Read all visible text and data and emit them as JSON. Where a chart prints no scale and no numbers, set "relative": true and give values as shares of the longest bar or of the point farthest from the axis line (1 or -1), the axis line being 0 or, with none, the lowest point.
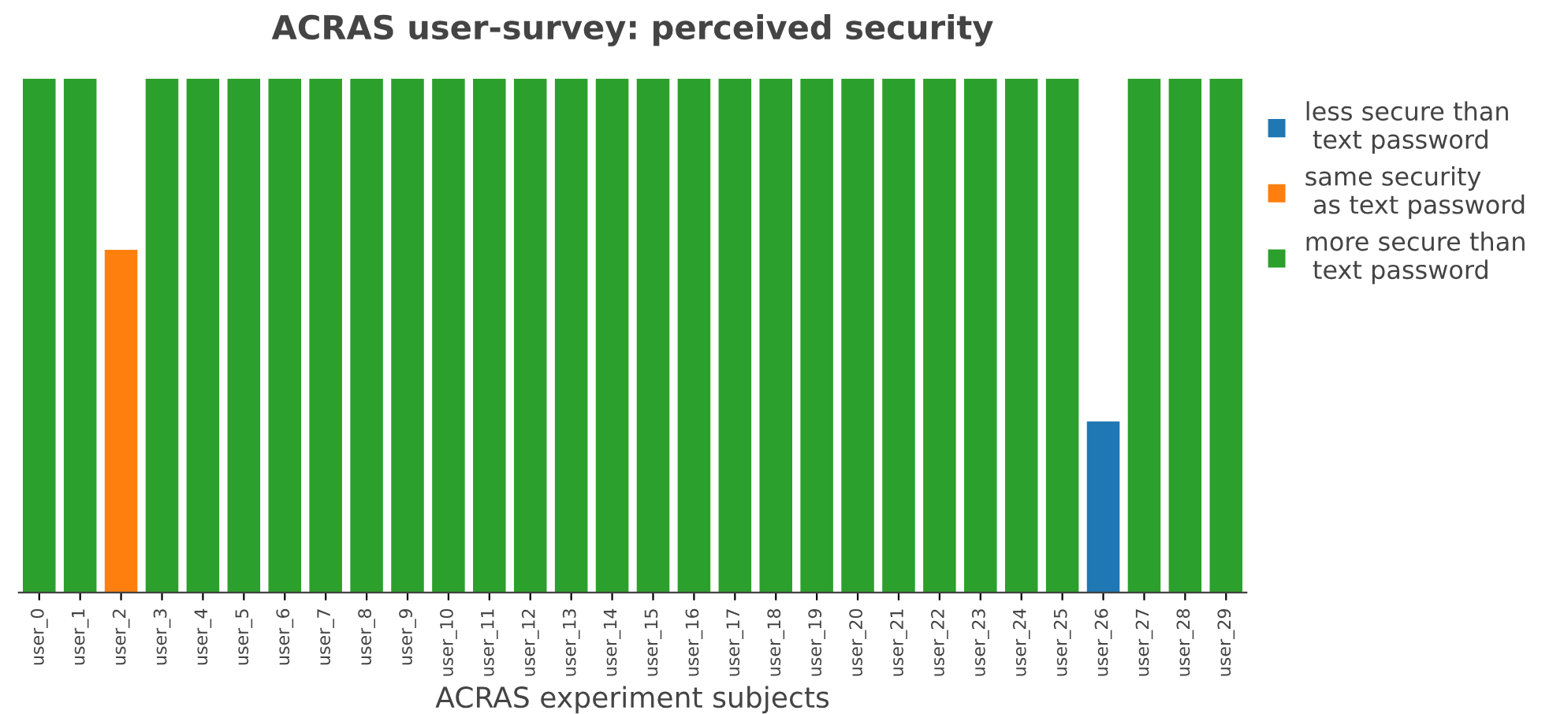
{
  "chart_data": {
    "type": "bar",
    "title": "ACRAS user-survey: perceived security",
    "xlabel": "ACRAS experiment subjects",
    "relative": true,
    "legend": "top right",
    "categories": [
      "user_0",
      "user_1",
      "user_2",
      "user_3",
      "user_4",
      "user_5",
      "user_6",
      "user_7",
      "user_8",
      "user_9",
      "user_10",
      "user_11",
      "user_12",
      "user_13",
      "user_14",
      "user_15",
      "user_16",
      "user_17",
      "user_18",
      "user_19",
      "user_20",
      "user_21",
      "user_22",
      "user_23",
      "user_24",
      "user_25",
      "user_26",
      "user_27",
      "user_28",
      "user_29"
    ],
    "series": [
      {
        "name": "less secure than\n text password",
        "color": "#1f77b4",
        "values": [
          null,
          null,
          null,
          null,
          null,
          null,
          null,
          null,
          null,
          null,
          null,
          null,
          null,
          null,
          null,
          null,
          null,
          null,
          null,
          null,
          null,
          null,
          null,
          null,
          null,
          null,
          0.333,
          null,
          null,
          null
        ]
      },
      {
        "name": "same security\n as text password",
        "color": "#ff7f0e",
        "values": [
          null,
          null,
          0.667,
          null,
          null,
          null,
          null,
          null,
          null,
          null,
          null,
          null,
          null,
          null,
          null,
          null,
          null,
          null,
          null,
          null,
          null,
          null,
          null,
          null,
          null,
          null,
          null,
          null,
          null,
          null
        ]
      },
      {
        "name": "more secure than\n text password",
        "color": "#2ca02c",
        "values": [
          1,
          1,
          null,
          1,
          1,
          1,
          1,
          1,
          1,
          1,
          1,
          1,
          1,
          1,
          1,
          1,
          1,
          1,
          1,
          1,
          1,
          1,
          1,
          1,
          1,
          1,
          null,
          1,
          1,
          1
        ]
      }
    ]
  }
}
